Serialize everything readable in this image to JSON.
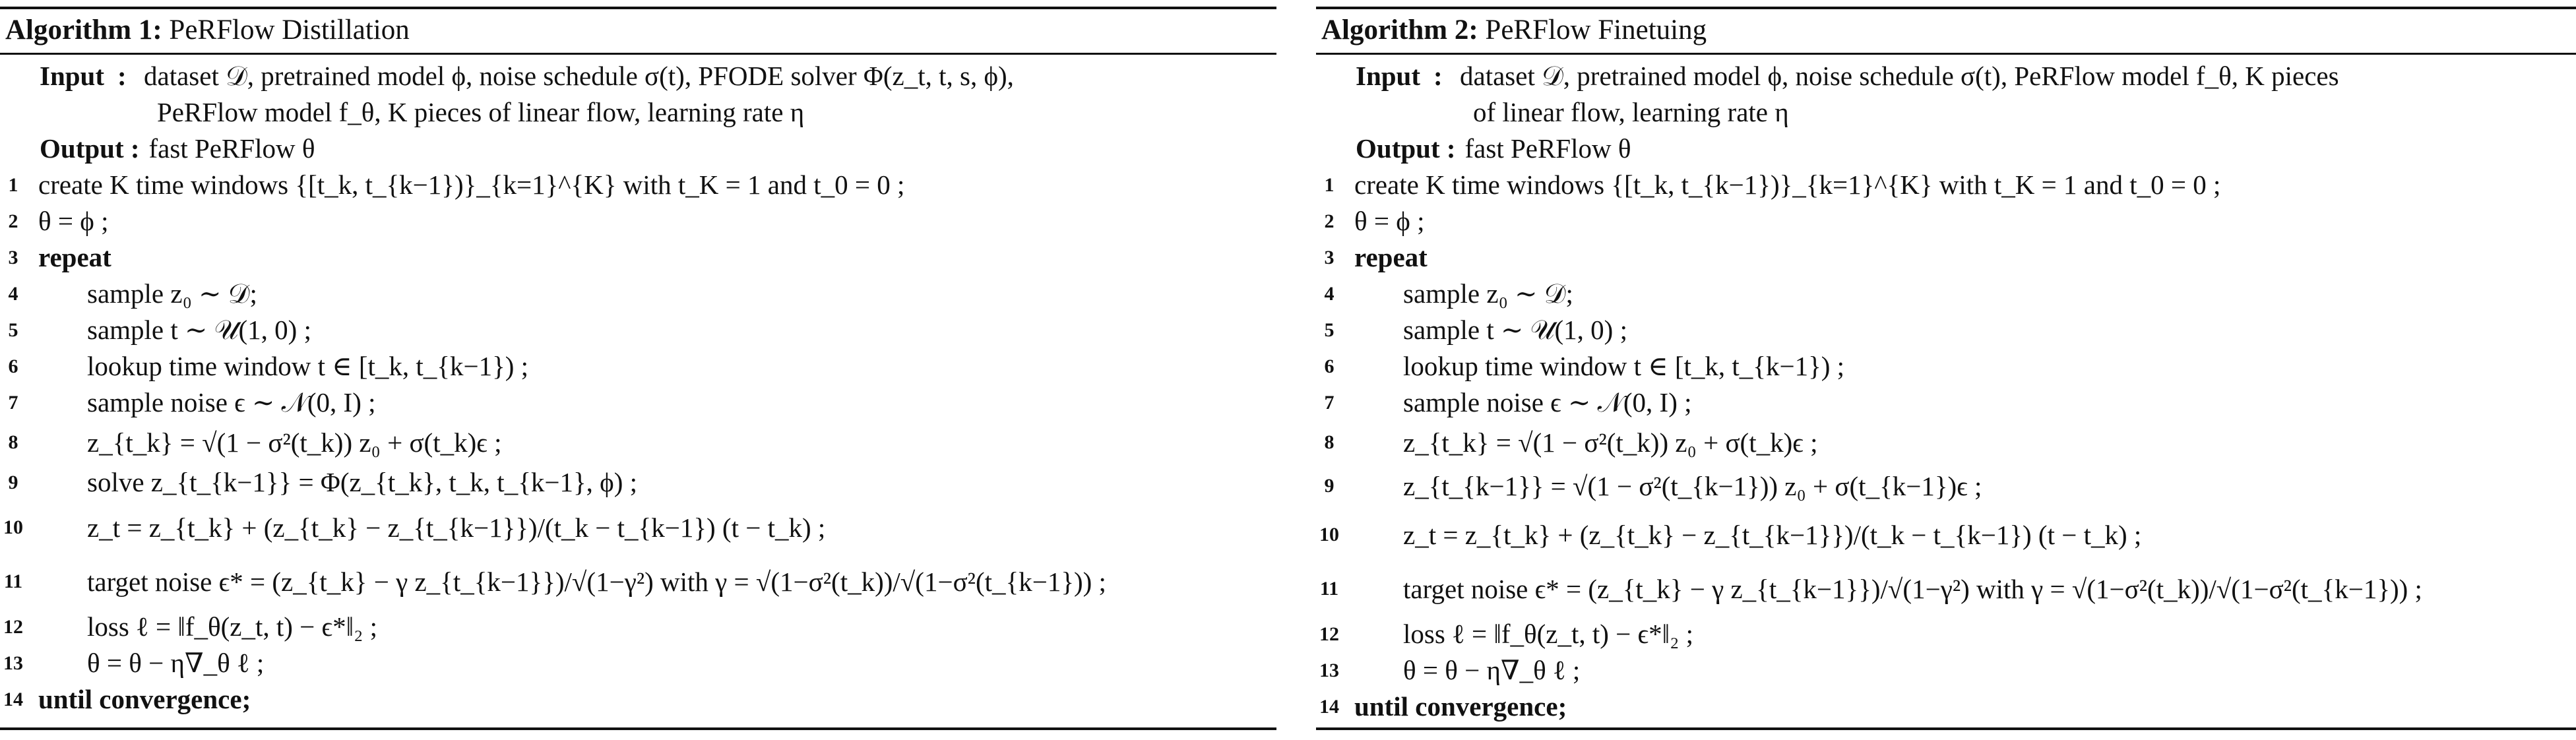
{
  "algorithm1": {
    "label": "Algorithm 1:",
    "title": "PeRFlow Distillation",
    "input_label": "Input",
    "input_colon": ":",
    "input_line1": "dataset 𝒟, pretrained model ϕ, noise schedule σ(t), PFODE solver Φ(z_t, t, s, ϕ),",
    "input_line2": "PeRFlow model f_θ, K pieces of linear flow, learning rate η",
    "output_label": "Output :",
    "output_text": "fast PeRFlow θ",
    "lines": [
      {
        "n": "1",
        "text": "create K time windows {[t_k, t_{k−1})}_{k=1}^{K} with t_K = 1 and t_0 = 0 ;"
      },
      {
        "n": "2",
        "text": "θ = ϕ ;"
      },
      {
        "n": "3",
        "text": "repeat"
      },
      {
        "n": "4",
        "text": "sample z₀ ∼ 𝒟;"
      },
      {
        "n": "5",
        "text": "sample t ∼ 𝒰(1, 0) ;"
      },
      {
        "n": "6",
        "text": "lookup time window t ∈ [t_k, t_{k−1}) ;"
      },
      {
        "n": "7",
        "text": "sample noise ϵ ∼ 𝒩(0, I) ;"
      },
      {
        "n": "8",
        "text": "z_{t_k} = √(1 − σ²(t_k)) z₀ + σ(t_k)ϵ ;"
      },
      {
        "n": "9",
        "text": "solve z_{t_{k−1}} = Φ(z_{t_k}, t_k, t_{k−1}, ϕ) ;"
      },
      {
        "n": "10",
        "text": "z_t = z_{t_k} + (z_{t_k} − z_{t_{k−1}})/(t_k − t_{k−1}) (t − t_k) ;"
      },
      {
        "n": "11",
        "text": "target noise ϵ* = (z_{t_k} − γ z_{t_{k−1}})/√(1−γ²) with γ = √(1−σ²(t_k))/√(1−σ²(t_{k−1})) ;"
      },
      {
        "n": "12",
        "text": "loss ℓ = ‖f_θ(z_t, t) − ϵ*‖₂ ;"
      },
      {
        "n": "13",
        "text": "θ = θ − η∇_θ ℓ ;"
      },
      {
        "n": "14",
        "text": "until convergence;"
      }
    ]
  },
  "algorithm2": {
    "label": "Algorithm 2:",
    "title": "PeRFlow Finetuing",
    "input_label": "Input",
    "input_colon": ":",
    "input_line1": "dataset 𝒟, pretrained model ϕ, noise schedule σ(t), PeRFlow model f_θ, K pieces",
    "input_line2": "of linear flow, learning rate η",
    "output_label": "Output :",
    "output_text": "fast PeRFlow θ",
    "lines": [
      {
        "n": "1",
        "text": "create K time windows {[t_k, t_{k−1})}_{k=1}^{K} with t_K = 1 and t_0 = 0 ;"
      },
      {
        "n": "2",
        "text": "θ = ϕ ;"
      },
      {
        "n": "3",
        "text": "repeat"
      },
      {
        "n": "4",
        "text": "sample z₀ ∼ 𝒟;"
      },
      {
        "n": "5",
        "text": "sample t ∼ 𝒰(1, 0) ;"
      },
      {
        "n": "6",
        "text": "lookup time window t ∈ [t_k, t_{k−1}) ;"
      },
      {
        "n": "7",
        "text": "sample noise ϵ ∼ 𝒩(0, I) ;"
      },
      {
        "n": "8",
        "text": "z_{t_k} = √(1 − σ²(t_k)) z₀ + σ(t_k)ϵ ;"
      },
      {
        "n": "9",
        "text": "z_{t_{k−1}} = √(1 − σ²(t_{k−1})) z₀ + σ(t_{k−1})ϵ ;"
      },
      {
        "n": "10",
        "text": "z_t = z_{t_k} + (z_{t_k} − z_{t_{k−1}})/(t_k − t_{k−1}) (t − t_k) ;"
      },
      {
        "n": "11",
        "text": "target noise ϵ* = (z_{t_k} − γ z_{t_{k−1}})/√(1−γ²) with γ = √(1−σ²(t_k))/√(1−σ²(t_{k−1})) ;"
      },
      {
        "n": "12",
        "text": "loss ℓ = ‖f_θ(z_t, t) − ϵ*‖₂ ;"
      },
      {
        "n": "13",
        "text": "θ = θ − η∇_θ ℓ ;"
      },
      {
        "n": "14",
        "text": "until convergence;"
      }
    ]
  }
}
